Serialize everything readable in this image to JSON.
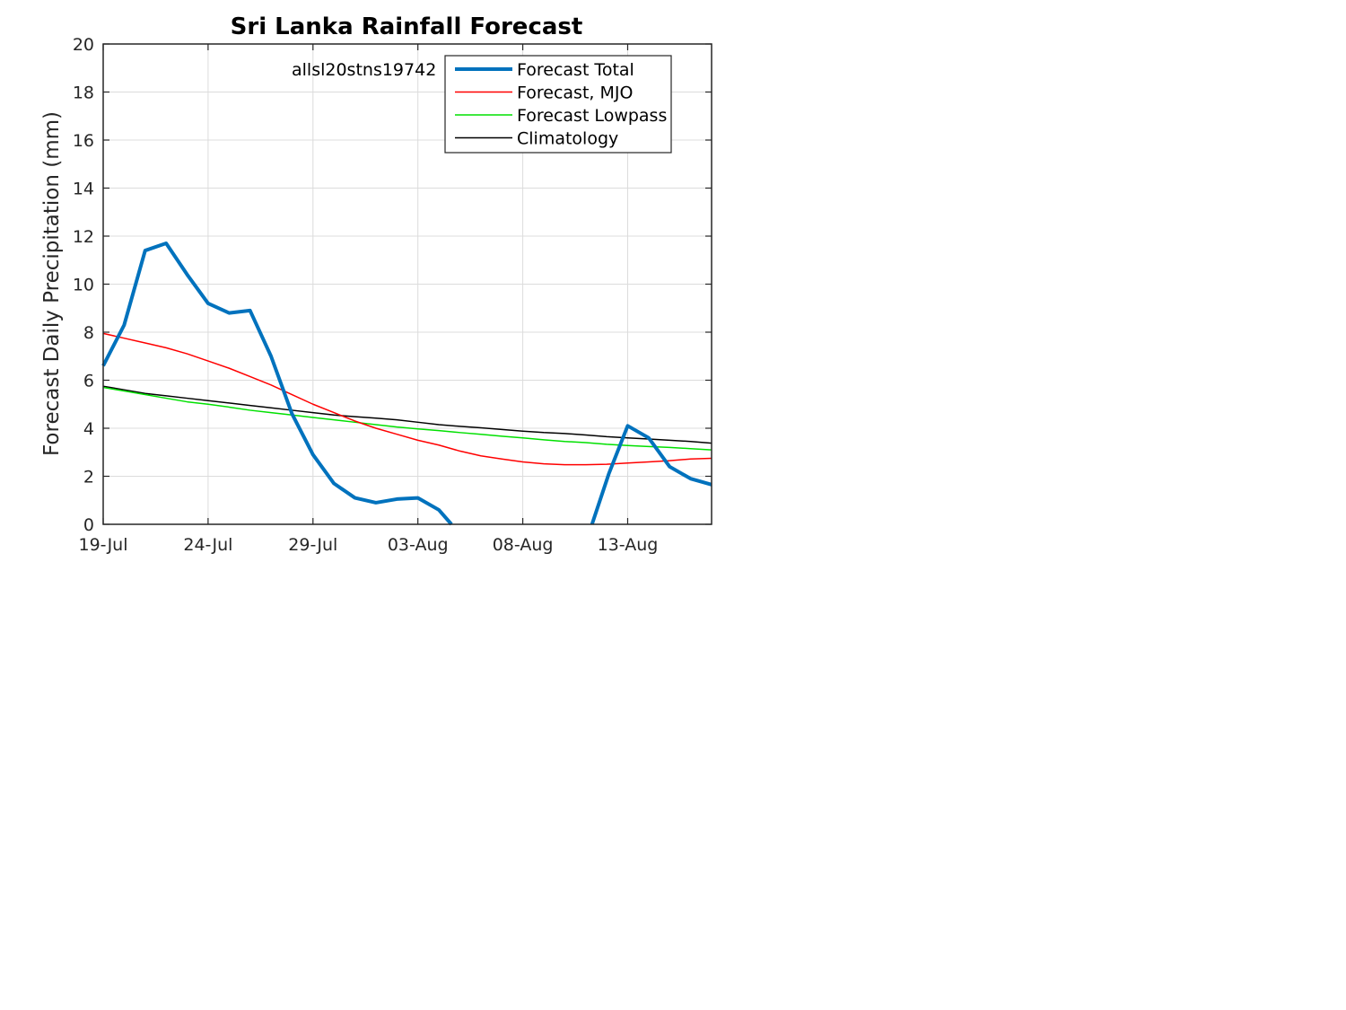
{
  "chart_data": {
    "type": "line",
    "title": "Sri Lanka Rainfall Forecast",
    "ylabel": "Forecast Daily Precipitation (mm)",
    "xlabel": "",
    "annotation": "allsl20stns19742",
    "x_start": "19-Jul",
    "ylim": [
      0,
      20
    ],
    "yticks": [
      0,
      2,
      4,
      6,
      8,
      10,
      12,
      14,
      16,
      18,
      20
    ],
    "xticks": [
      {
        "day": 0,
        "label": "19-Jul"
      },
      {
        "day": 5,
        "label": "24-Jul"
      },
      {
        "day": 10,
        "label": "29-Jul"
      },
      {
        "day": 15,
        "label": "03-Aug"
      },
      {
        "day": 20,
        "label": "08-Aug"
      },
      {
        "day": 25,
        "label": "13-Aug"
      }
    ],
    "xlim": [
      0,
      29
    ],
    "grid": true,
    "legend_position": "top-right",
    "series": [
      {
        "name": "Forecast Total",
        "color": "#0072BD",
        "width": 4,
        "points": [
          [
            0,
            6.6
          ],
          [
            1,
            8.3
          ],
          [
            2,
            11.4
          ],
          [
            3,
            11.7
          ],
          [
            4,
            10.4
          ],
          [
            5,
            9.2
          ],
          [
            6,
            8.8
          ],
          [
            7,
            8.9
          ],
          [
            8,
            7.0
          ],
          [
            9,
            4.6
          ],
          [
            10,
            2.9
          ],
          [
            11,
            1.7
          ],
          [
            12,
            1.1
          ],
          [
            13,
            0.9
          ],
          [
            14,
            1.05
          ],
          [
            15,
            1.1
          ],
          [
            16,
            0.6
          ],
          [
            16.6,
            0.0
          ]
        ],
        "points_2": [
          [
            23.3,
            0.0
          ],
          [
            24.1,
            2.1
          ],
          [
            25,
            4.1
          ],
          [
            26,
            3.6
          ],
          [
            27,
            2.4
          ],
          [
            28,
            1.9
          ],
          [
            29,
            1.65
          ]
        ]
      },
      {
        "name": "Forecast, MJO",
        "color": "#FF0000",
        "width": 1.5,
        "points": [
          [
            0,
            7.95
          ],
          [
            1,
            7.75
          ],
          [
            2,
            7.55
          ],
          [
            3,
            7.35
          ],
          [
            4,
            7.1
          ],
          [
            5,
            6.8
          ],
          [
            6,
            6.5
          ],
          [
            7,
            6.15
          ],
          [
            8,
            5.8
          ],
          [
            9,
            5.4
          ],
          [
            10,
            5.0
          ],
          [
            11,
            4.65
          ],
          [
            12,
            4.3
          ],
          [
            13,
            4.0
          ],
          [
            14,
            3.75
          ],
          [
            15,
            3.5
          ],
          [
            16,
            3.3
          ],
          [
            17,
            3.05
          ],
          [
            18,
            2.85
          ],
          [
            19,
            2.72
          ],
          [
            20,
            2.6
          ],
          [
            21,
            2.52
          ],
          [
            22,
            2.48
          ],
          [
            23,
            2.48
          ],
          [
            24,
            2.5
          ],
          [
            25,
            2.55
          ],
          [
            26,
            2.6
          ],
          [
            27,
            2.65
          ],
          [
            28,
            2.72
          ],
          [
            29,
            2.75
          ]
        ]
      },
      {
        "name": "Forecast Lowpass",
        "color": "#00E000",
        "width": 1.5,
        "points": [
          [
            0,
            5.7
          ],
          [
            1,
            5.55
          ],
          [
            2,
            5.4
          ],
          [
            3,
            5.25
          ],
          [
            4,
            5.1
          ],
          [
            5,
            5.0
          ],
          [
            6,
            4.88
          ],
          [
            7,
            4.75
          ],
          [
            8,
            4.65
          ],
          [
            9,
            4.55
          ],
          [
            10,
            4.45
          ],
          [
            11,
            4.35
          ],
          [
            12,
            4.25
          ],
          [
            13,
            4.15
          ],
          [
            14,
            4.05
          ],
          [
            15,
            3.97
          ],
          [
            16,
            3.9
          ],
          [
            17,
            3.82
          ],
          [
            18,
            3.75
          ],
          [
            19,
            3.67
          ],
          [
            20,
            3.6
          ],
          [
            21,
            3.52
          ],
          [
            22,
            3.45
          ],
          [
            23,
            3.4
          ],
          [
            24,
            3.33
          ],
          [
            25,
            3.28
          ],
          [
            26,
            3.24
          ],
          [
            27,
            3.2
          ],
          [
            28,
            3.15
          ],
          [
            29,
            3.1
          ]
        ]
      },
      {
        "name": "Climatology",
        "color": "#000000",
        "width": 1.5,
        "points": [
          [
            0,
            5.75
          ],
          [
            1,
            5.6
          ],
          [
            2,
            5.45
          ],
          [
            3,
            5.35
          ],
          [
            4,
            5.25
          ],
          [
            5,
            5.15
          ],
          [
            6,
            5.05
          ],
          [
            7,
            4.95
          ],
          [
            8,
            4.85
          ],
          [
            9,
            4.75
          ],
          [
            10,
            4.65
          ],
          [
            11,
            4.55
          ],
          [
            12,
            4.48
          ],
          [
            13,
            4.42
          ],
          [
            14,
            4.35
          ],
          [
            15,
            4.25
          ],
          [
            16,
            4.15
          ],
          [
            17,
            4.08
          ],
          [
            18,
            4.02
          ],
          [
            19,
            3.95
          ],
          [
            20,
            3.88
          ],
          [
            21,
            3.82
          ],
          [
            22,
            3.78
          ],
          [
            23,
            3.72
          ],
          [
            24,
            3.65
          ],
          [
            25,
            3.6
          ],
          [
            26,
            3.55
          ],
          [
            27,
            3.5
          ],
          [
            28,
            3.45
          ],
          [
            29,
            3.38
          ]
        ]
      }
    ]
  }
}
